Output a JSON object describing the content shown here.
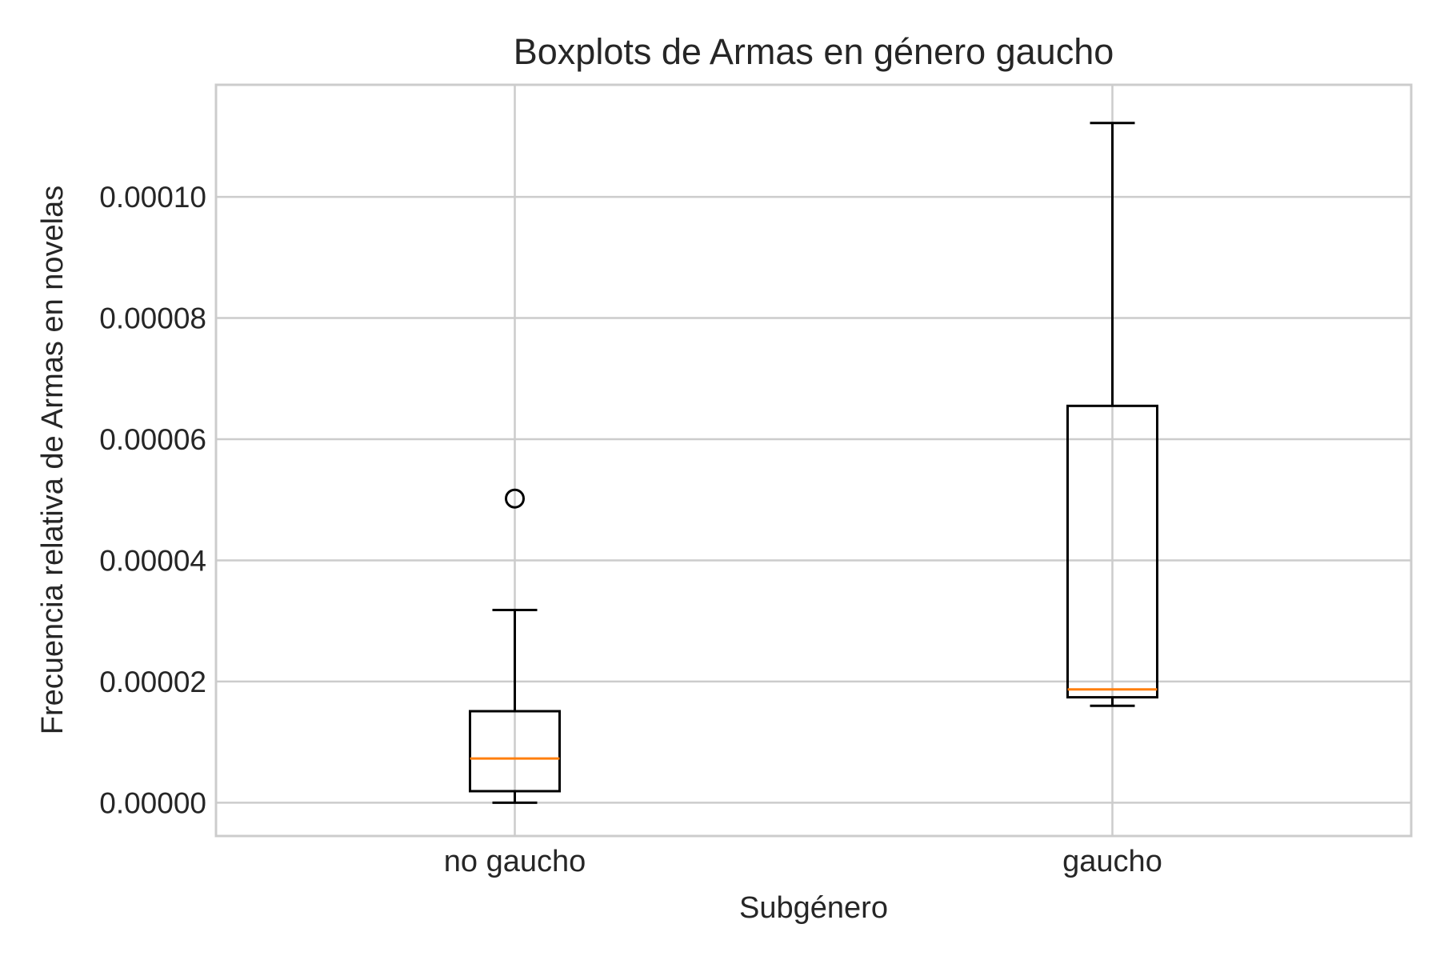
{
  "chart_data": {
    "type": "boxplot",
    "title": "Boxplots de Armas en género gaucho",
    "xlabel": "Subgénero",
    "ylabel": "Frecuencia relativa de Armas en novelas",
    "ylim": [
      -5.5e-06,
      0.0001185
    ],
    "yticks": [
      0,
      2e-05,
      4e-05,
      6e-05,
      8e-05,
      0.0001
    ],
    "ytick_labels": [
      "0.00000",
      "0.00002",
      "0.00004",
      "0.00006",
      "0.00008",
      "0.00010"
    ],
    "grid": true,
    "categories": [
      "no gaucho",
      "gaucho"
    ],
    "boxes": [
      {
        "category": "no gaucho",
        "whisker_low": 0.0,
        "q1": 1.9e-06,
        "median": 7.3e-06,
        "q3": 1.51e-05,
        "whisker_high": 3.18e-05,
        "outliers": [
          5.02e-05
        ]
      },
      {
        "category": "gaucho",
        "whisker_low": 1.6e-05,
        "q1": 1.74e-05,
        "median": 1.87e-05,
        "q3": 6.55e-05,
        "whisker_high": 0.0001122,
        "outliers": []
      }
    ],
    "colors": {
      "box": "#000000",
      "median": "#ff7f0e",
      "grid": "#cccccc",
      "spine": "#cccccc"
    }
  }
}
